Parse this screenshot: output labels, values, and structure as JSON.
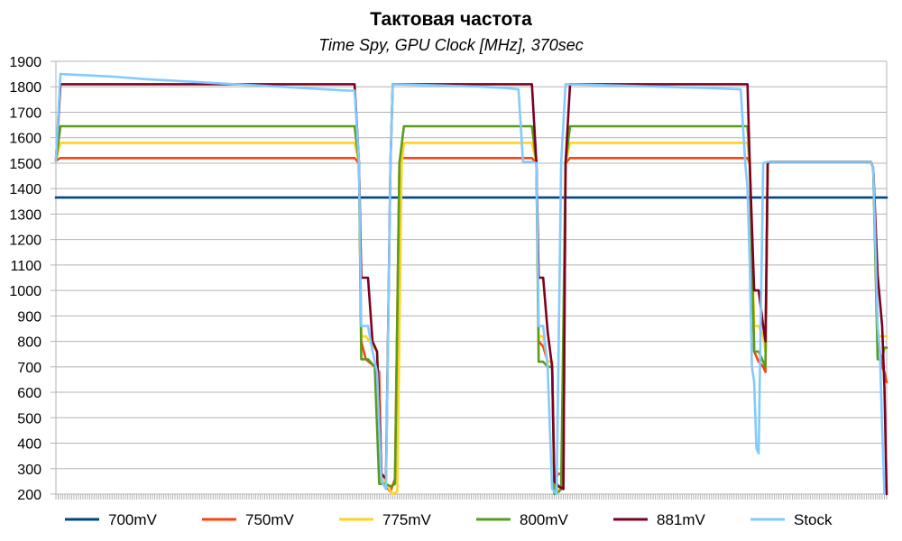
{
  "chart_data": {
    "type": "line",
    "title": "Тактовая частота",
    "subtitle": "Time Spy, GPU Clock [MHz], 370sec",
    "xlabel": "",
    "ylabel": "",
    "xlim": [
      0,
      370
    ],
    "ylim": [
      200,
      1900
    ],
    "yticks": [
      200,
      300,
      400,
      500,
      600,
      700,
      800,
      900,
      1000,
      1100,
      1200,
      1300,
      1400,
      1500,
      1600,
      1700,
      1800,
      1900
    ],
    "grid": true,
    "legend_position": "bottom",
    "series": [
      {
        "name": "700mV",
        "color": "#004586",
        "points": [
          [
            0,
            1365
          ],
          [
            370,
            1365
          ]
        ]
      },
      {
        "name": "750mV",
        "color": "#ff420e",
        "points": [
          [
            0,
            1510
          ],
          [
            2,
            1520
          ],
          [
            133,
            1520
          ],
          [
            135,
            1500
          ],
          [
            136,
            800
          ],
          [
            138,
            730
          ],
          [
            142,
            700
          ],
          [
            144,
            680
          ],
          [
            145,
            250
          ],
          [
            147,
            230
          ],
          [
            149,
            210
          ],
          [
            151,
            260
          ],
          [
            153,
            1500
          ],
          [
            154,
            1520
          ],
          [
            212,
            1520
          ],
          [
            214,
            1500
          ],
          [
            215,
            800
          ],
          [
            217,
            780
          ],
          [
            219,
            720
          ],
          [
            221,
            720
          ],
          [
            222,
            260
          ],
          [
            224,
            280
          ],
          [
            226,
            280
          ],
          [
            227,
            1500
          ],
          [
            229,
            1520
          ],
          [
            308,
            1520
          ],
          [
            309,
            1500
          ],
          [
            311,
            760
          ],
          [
            313,
            720
          ],
          [
            315,
            700
          ],
          [
            316,
            680
          ],
          [
            317,
            1500
          ],
          [
            318,
            1505
          ],
          [
            363,
            1505
          ],
          [
            364,
            1480
          ],
          [
            366,
            820
          ],
          [
            368,
            700
          ],
          [
            369,
            680
          ],
          [
            370,
            640
          ]
        ]
      },
      {
        "name": "775mV",
        "color": "#ffd320",
        "points": [
          [
            0,
            1510
          ],
          [
            2,
            1580
          ],
          [
            133,
            1580
          ],
          [
            135,
            1500
          ],
          [
            136,
            820
          ],
          [
            138,
            820
          ],
          [
            143,
            760
          ],
          [
            145,
            280
          ],
          [
            147,
            240
          ],
          [
            150,
            200
          ],
          [
            152,
            210
          ],
          [
            154,
            1500
          ],
          [
            155,
            1580
          ],
          [
            212,
            1580
          ],
          [
            214,
            1500
          ],
          [
            215,
            820
          ],
          [
            217,
            820
          ],
          [
            219,
            720
          ],
          [
            221,
            720
          ],
          [
            222,
            250
          ],
          [
            224,
            220
          ],
          [
            226,
            220
          ],
          [
            227,
            1500
          ],
          [
            229,
            1580
          ],
          [
            308,
            1580
          ],
          [
            309,
            1500
          ],
          [
            311,
            860
          ],
          [
            313,
            860
          ],
          [
            315,
            820
          ],
          [
            316,
            760
          ],
          [
            317,
            1500
          ],
          [
            318,
            1505
          ],
          [
            363,
            1505
          ],
          [
            364,
            1480
          ],
          [
            366,
            820
          ],
          [
            370,
            820
          ]
        ]
      },
      {
        "name": "800mV",
        "color": "#579d1c",
        "points": [
          [
            0,
            1510
          ],
          [
            2,
            1645
          ],
          [
            133,
            1645
          ],
          [
            135,
            1500
          ],
          [
            136,
            730
          ],
          [
            139,
            730
          ],
          [
            142,
            700
          ],
          [
            144,
            240
          ],
          [
            147,
            240
          ],
          [
            149,
            230
          ],
          [
            151,
            240
          ],
          [
            153,
            1500
          ],
          [
            155,
            1645
          ],
          [
            212,
            1645
          ],
          [
            214,
            1500
          ],
          [
            215,
            720
          ],
          [
            217,
            720
          ],
          [
            219,
            700
          ],
          [
            221,
            700
          ],
          [
            222,
            200
          ],
          [
            224,
            210
          ],
          [
            225,
            220
          ],
          [
            227,
            1500
          ],
          [
            229,
            1645
          ],
          [
            308,
            1645
          ],
          [
            309,
            1500
          ],
          [
            311,
            760
          ],
          [
            313,
            760
          ],
          [
            315,
            720
          ],
          [
            316,
            700
          ],
          [
            317,
            1500
          ],
          [
            318,
            1505
          ],
          [
            363,
            1505
          ],
          [
            364,
            1480
          ],
          [
            366,
            730
          ],
          [
            368,
            730
          ],
          [
            369,
            775
          ],
          [
            370,
            775
          ]
        ]
      },
      {
        "name": "881mV",
        "color": "#7e0021",
        "points": [
          [
            0,
            1510
          ],
          [
            2,
            1810
          ],
          [
            133,
            1810
          ],
          [
            135,
            1500
          ],
          [
            136,
            1050
          ],
          [
            139,
            1050
          ],
          [
            141,
            800
          ],
          [
            143,
            760
          ],
          [
            145,
            280
          ],
          [
            147,
            260
          ],
          [
            149,
            1500
          ],
          [
            150,
            1810
          ],
          [
            212,
            1810
          ],
          [
            214,
            1500
          ],
          [
            215,
            1050
          ],
          [
            217,
            1050
          ],
          [
            219,
            840
          ],
          [
            221,
            700
          ],
          [
            222,
            250
          ],
          [
            224,
            230
          ],
          [
            226,
            220
          ],
          [
            227,
            1500
          ],
          [
            229,
            1810
          ],
          [
            308,
            1810
          ],
          [
            309,
            1500
          ],
          [
            311,
            1000
          ],
          [
            313,
            1000
          ],
          [
            315,
            860
          ],
          [
            316,
            800
          ],
          [
            317,
            1500
          ],
          [
            318,
            1505
          ],
          [
            363,
            1505
          ],
          [
            364,
            1480
          ],
          [
            366,
            1060
          ],
          [
            368,
            860
          ],
          [
            369,
            620
          ],
          [
            370,
            200
          ]
        ]
      },
      {
        "name": "Stock",
        "color": "#83caff",
        "points": [
          [
            0,
            1510
          ],
          [
            2,
            1850
          ],
          [
            25,
            1840
          ],
          [
            40,
            1830
          ],
          [
            60,
            1820
          ],
          [
            80,
            1810
          ],
          [
            100,
            1800
          ],
          [
            130,
            1785
          ],
          [
            133,
            1785
          ],
          [
            135,
            1500
          ],
          [
            136,
            860
          ],
          [
            139,
            860
          ],
          [
            141,
            760
          ],
          [
            143,
            680
          ],
          [
            145,
            250
          ],
          [
            147,
            220
          ],
          [
            149,
            1500
          ],
          [
            150,
            1810
          ],
          [
            172,
            1805
          ],
          [
            190,
            1800
          ],
          [
            200,
            1795
          ],
          [
            206,
            1790
          ],
          [
            208,
            1505
          ],
          [
            212,
            1505
          ],
          [
            214,
            1500
          ],
          [
            215,
            860
          ],
          [
            217,
            860
          ],
          [
            219,
            700
          ],
          [
            221,
            220
          ],
          [
            223,
            200
          ],
          [
            225,
            1500
          ],
          [
            227,
            1810
          ],
          [
            250,
            1805
          ],
          [
            270,
            1800
          ],
          [
            290,
            1795
          ],
          [
            305,
            1790
          ],
          [
            307,
            1500
          ],
          [
            308,
            1400
          ],
          [
            309,
            1100
          ],
          [
            310,
            700
          ],
          [
            311,
            640
          ],
          [
            312,
            380
          ],
          [
            313,
            360
          ],
          [
            315,
            1500
          ],
          [
            317,
            1505
          ],
          [
            363,
            1505
          ],
          [
            364,
            1480
          ],
          [
            366,
            860
          ],
          [
            367,
            760
          ],
          [
            368,
            460
          ],
          [
            369,
            200
          ]
        ]
      }
    ]
  }
}
